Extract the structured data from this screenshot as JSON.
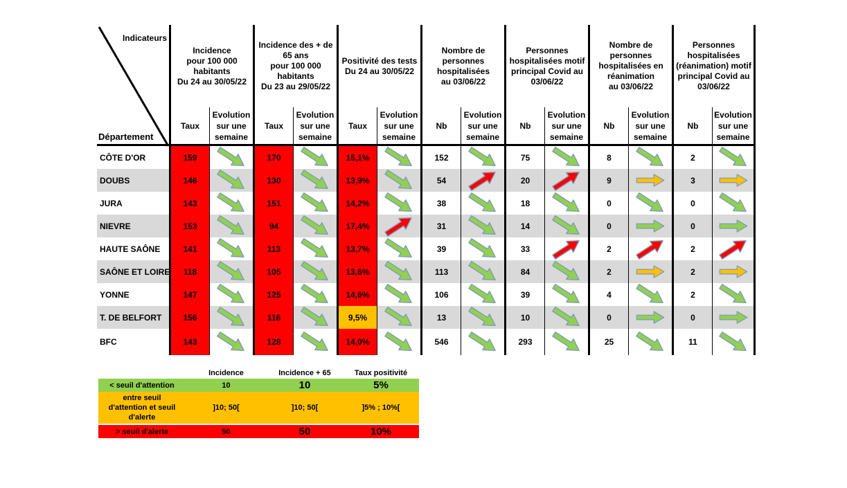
{
  "chart_data": {
    "type": "table",
    "corner": {
      "top_label": "Indicateurs",
      "bottom_label": "Département"
    },
    "column_groups": [
      {
        "title_lines": [
          "Incidence",
          "pour 100 000",
          "habitants",
          "Du 24 au 30/05/22"
        ],
        "value_label": "Taux",
        "evolution_lines": [
          "Evolution",
          "sur une",
          "semaine"
        ]
      },
      {
        "title_lines": [
          "Incidence des + de",
          "65 ans",
          "pour 100 000",
          "habitants",
          "Du 23 au 29/05/22"
        ],
        "value_label": "Taux",
        "evolution_lines": [
          "Evolution",
          "sur une",
          "semaine"
        ]
      },
      {
        "title_lines": [
          "Positivité des tests",
          "Du 24 au 30/05/22"
        ],
        "value_label": "Taux",
        "evolution_lines": [
          "Evolution",
          "sur une",
          "semaine"
        ]
      },
      {
        "title_lines": [
          "Nombre de",
          "personnes",
          "hospitalisées",
          "au 03/06/22"
        ],
        "value_label": "Nb",
        "evolution_lines": [
          "Evolution",
          "sur une",
          "semaine"
        ]
      },
      {
        "title_lines": [
          "Personnes",
          "hospitalisées motif",
          "principal Covid au",
          "03/06/22"
        ],
        "value_label": "Nb",
        "evolution_lines": [
          "Evolution",
          "sur une",
          "semaine"
        ]
      },
      {
        "title_lines": [
          "Nombre de",
          "personnes",
          "hospitalisées en",
          "réanimation",
          "au 03/06/22"
        ],
        "value_label": "Nb",
        "evolution_lines": [
          "Evolution",
          "sur une",
          "semaine"
        ]
      },
      {
        "title_lines": [
          "Personnes",
          "hospitalisées",
          "(réanimation) motif",
          "principal Covid au",
          "03/06/22"
        ],
        "value_label": "Nb",
        "evolution_lines": [
          "Evolution",
          "sur une",
          "semaine"
        ]
      }
    ],
    "rows": [
      {
        "name": "CÔTE D'OR",
        "values": [
          "159",
          "170",
          "15,1%",
          "152",
          "75",
          "8",
          "2"
        ],
        "value_bg": [
          "red",
          "red",
          "red",
          null,
          null,
          null,
          null
        ],
        "trends": [
          "down-green",
          "down-green",
          "down-green",
          "down-green",
          "down-green",
          "down-green",
          "down-green"
        ]
      },
      {
        "name": "DOUBS",
        "values": [
          "146",
          "130",
          "13,9%",
          "54",
          "20",
          "9",
          "3"
        ],
        "value_bg": [
          "red",
          "red",
          "red",
          null,
          null,
          null,
          null
        ],
        "trends": [
          "down-green",
          "down-green",
          "down-green",
          "up-red",
          "up-red",
          "flat-orange",
          "flat-orange"
        ]
      },
      {
        "name": "JURA",
        "values": [
          "143",
          "151",
          "14,2%",
          "38",
          "18",
          "0",
          "0"
        ],
        "value_bg": [
          "red",
          "red",
          "red",
          null,
          null,
          null,
          null
        ],
        "trends": [
          "down-green",
          "down-green",
          "down-green",
          "down-green",
          "down-green",
          "down-green",
          "down-green"
        ]
      },
      {
        "name": "NIEVRE",
        "values": [
          "153",
          "94",
          "17,4%",
          "31",
          "14",
          "0",
          "0"
        ],
        "value_bg": [
          "red",
          "red",
          "red",
          null,
          null,
          null,
          null
        ],
        "trends": [
          "down-green",
          "down-green",
          "up-red",
          "down-green",
          "down-green",
          "flat-green",
          "flat-green"
        ]
      },
      {
        "name": "HAUTE SAÔNE",
        "values": [
          "141",
          "113",
          "13,7%",
          "39",
          "33",
          "2",
          "2"
        ],
        "value_bg": [
          "red",
          "red",
          "red",
          null,
          null,
          null,
          null
        ],
        "trends": [
          "down-green",
          "down-green",
          "down-green",
          "down-green",
          "up-red",
          "up-red",
          "up-red"
        ]
      },
      {
        "name": "SAÔNE ET LOIRE",
        "values": [
          "118",
          "105",
          "13,6%",
          "113",
          "84",
          "2",
          "2"
        ],
        "value_bg": [
          "red",
          "red",
          "red",
          null,
          null,
          null,
          null
        ],
        "trends": [
          "down-green",
          "down-green",
          "down-green",
          "down-green",
          "down-green",
          "flat-orange",
          "flat-orange"
        ]
      },
      {
        "name": "YONNE",
        "values": [
          "147",
          "125",
          "14,6%",
          "106",
          "39",
          "4",
          "2"
        ],
        "value_bg": [
          "red",
          "red",
          "red",
          null,
          null,
          null,
          null
        ],
        "trends": [
          "down-green",
          "down-green",
          "down-green",
          "down-green",
          "down-green",
          "down-green",
          "down-green"
        ]
      },
      {
        "name": "T. DE BELFORT",
        "values": [
          "156",
          "116",
          "9,5%",
          "13",
          "10",
          "0",
          "0"
        ],
        "value_bg": [
          "red",
          "red",
          "orange",
          null,
          null,
          null,
          null
        ],
        "trends": [
          "down-green",
          "down-green",
          "down-green",
          "down-green",
          "down-green",
          "flat-green",
          "flat-green"
        ]
      },
      {
        "name": "BFC",
        "values": [
          "143",
          "128",
          "14,0%",
          "546",
          "293",
          "25",
          "11"
        ],
        "value_bg": [
          "red",
          "red",
          "red",
          null,
          null,
          null,
          null
        ],
        "trends": [
          "down-green",
          "down-green",
          "down-green",
          "down-green",
          "down-green",
          "down-green",
          "down-green"
        ]
      }
    ],
    "legend": {
      "col_headers": [
        "Incidence",
        "Incidence + 65",
        "Taux positivité"
      ],
      "rows": [
        {
          "label_lines": [
            "< seuil d'attention"
          ],
          "color": "green",
          "values": [
            "10",
            "10",
            "5%"
          ],
          "big": [
            false,
            true,
            true
          ]
        },
        {
          "label_lines": [
            "entre seuil",
            "d'attention et seuil",
            "d'alerte"
          ],
          "color": "orange",
          "values": [
            "]10; 50[",
            "]10; 50[",
            "]5% ; 10%["
          ],
          "big": [
            false,
            false,
            false
          ]
        },
        {
          "label_lines": [
            "> seuil d'alerte"
          ],
          "color": "red",
          "values": [
            "50",
            "50",
            "10%"
          ],
          "big": [
            false,
            true,
            true
          ]
        }
      ]
    }
  },
  "colors": {
    "red": "#FF0000",
    "orange": "#FFC000",
    "green": "#92D050",
    "band_gray": "#D9D9D9",
    "white": "#FFFFFF",
    "arrow_outline": "#7F9DB9",
    "border": "#000000"
  }
}
